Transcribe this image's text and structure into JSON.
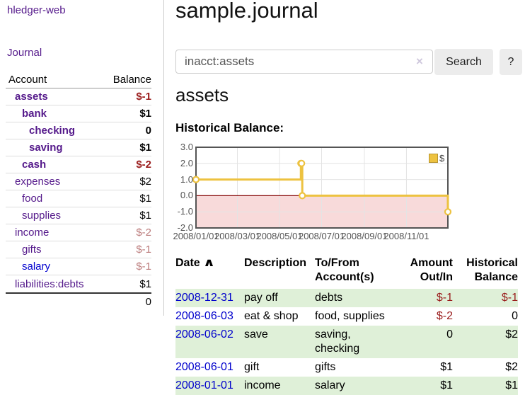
{
  "app": {
    "brand": "hledger-web",
    "journal_label": "Journal"
  },
  "sidebar": {
    "header": {
      "account": "Account",
      "balance": "Balance"
    },
    "accounts": [
      {
        "name": "assets",
        "balance": "$-1"
      },
      {
        "name": "bank",
        "balance": "$1"
      },
      {
        "name": "checking",
        "balance": "0"
      },
      {
        "name": "saving",
        "balance": "$1"
      },
      {
        "name": "cash",
        "balance": "$-2"
      },
      {
        "name": "expenses",
        "balance": "$2"
      },
      {
        "name": "food",
        "balance": "$1"
      },
      {
        "name": "supplies",
        "balance": "$1"
      },
      {
        "name": "income",
        "balance": "$-2"
      },
      {
        "name": "gifts",
        "balance": "$-1"
      },
      {
        "name": "salary",
        "balance": "$-1"
      },
      {
        "name": "liabilities:debts",
        "balance": "$1"
      }
    ],
    "total": "0"
  },
  "main": {
    "title": "sample.journal",
    "search": {
      "value": "inacct:assets",
      "clear_icon": "×",
      "button_label": "Search",
      "help_label": "?"
    },
    "account_heading": "assets",
    "chart_label": "Historical Balance:",
    "register": {
      "columns": {
        "date": "Date",
        "description": "Description",
        "tofrom": "To/From Account(s)",
        "amount": "Amount Out/In",
        "balance": "Historical Balance"
      },
      "sort_icon": "∧",
      "rows": [
        {
          "date": "2008-12-31",
          "description": "pay off",
          "accounts": "debts",
          "amount": "$-1",
          "balance": "$-1"
        },
        {
          "date": "2008-06-03",
          "description": "eat & shop",
          "accounts": "food, supplies",
          "amount": "$-2",
          "balance": "0"
        },
        {
          "date": "2008-06-02",
          "description": "save",
          "accounts": "saving, checking",
          "amount": "0",
          "balance": "$2"
        },
        {
          "date": "2008-06-01",
          "description": "gift",
          "accounts": "gifts",
          "amount": "$1",
          "balance": "$2"
        },
        {
          "date": "2008-01-01",
          "description": "income",
          "accounts": "salary",
          "amount": "$1",
          "balance": "$1"
        }
      ]
    }
  },
  "chart_data": {
    "type": "line",
    "step": true,
    "title": "Historical Balance:",
    "series": [
      {
        "name": "$",
        "points": [
          [
            "2008-01-01",
            1
          ],
          [
            "2008-06-01",
            2
          ],
          [
            "2008-06-02",
            2
          ],
          [
            "2008-06-03",
            0
          ],
          [
            "2008-12-31",
            -1
          ]
        ]
      }
    ],
    "ylim": [
      -2,
      3
    ],
    "yticks": [
      3,
      2,
      1,
      0,
      -1,
      -2
    ],
    "xticks": [
      "2008/01/01",
      "2008/03/01",
      "2008/05/01",
      "2008/07/01",
      "2008/09/01",
      "2008/11/01"
    ],
    "xrange": [
      "2008-01-01",
      "2008-12-31"
    ],
    "legend": {
      "label": "$",
      "position": "top-right"
    },
    "colors": {
      "line": "#edc240",
      "marker_fill": "#ffffff",
      "negative_region": "#f8dada",
      "zero_line": "#8b1010",
      "grid": "#e4e4e4",
      "border": "#545454"
    }
  }
}
